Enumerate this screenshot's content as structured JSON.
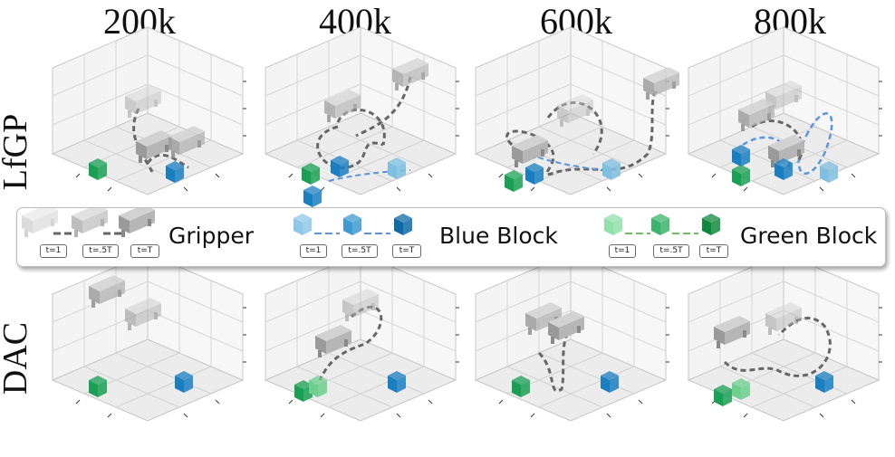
{
  "columns": [
    "200k",
    "400k",
    "600k",
    "800k"
  ],
  "rows": [
    "LfGP",
    "DAC"
  ],
  "legend": {
    "gripper": {
      "label": "Gripper",
      "times": [
        "t=1",
        "t=.5T",
        "t=T"
      ]
    },
    "blue_block": {
      "label": "Blue Block",
      "times": [
        "t=1",
        "t=.5T",
        "t=T"
      ]
    },
    "green_block": {
      "label": "Green Block",
      "times": [
        "t=1",
        "t=.5T",
        "t=T"
      ]
    }
  },
  "colors": {
    "gripper": "#9e9e9e",
    "gripper_dark": "#707070",
    "blue_block": "#1a7fc1",
    "blue_line": "#5b95dc",
    "green_block": "#1aa055",
    "green_line": "#6fbf63",
    "trajectory": "#666666"
  }
}
